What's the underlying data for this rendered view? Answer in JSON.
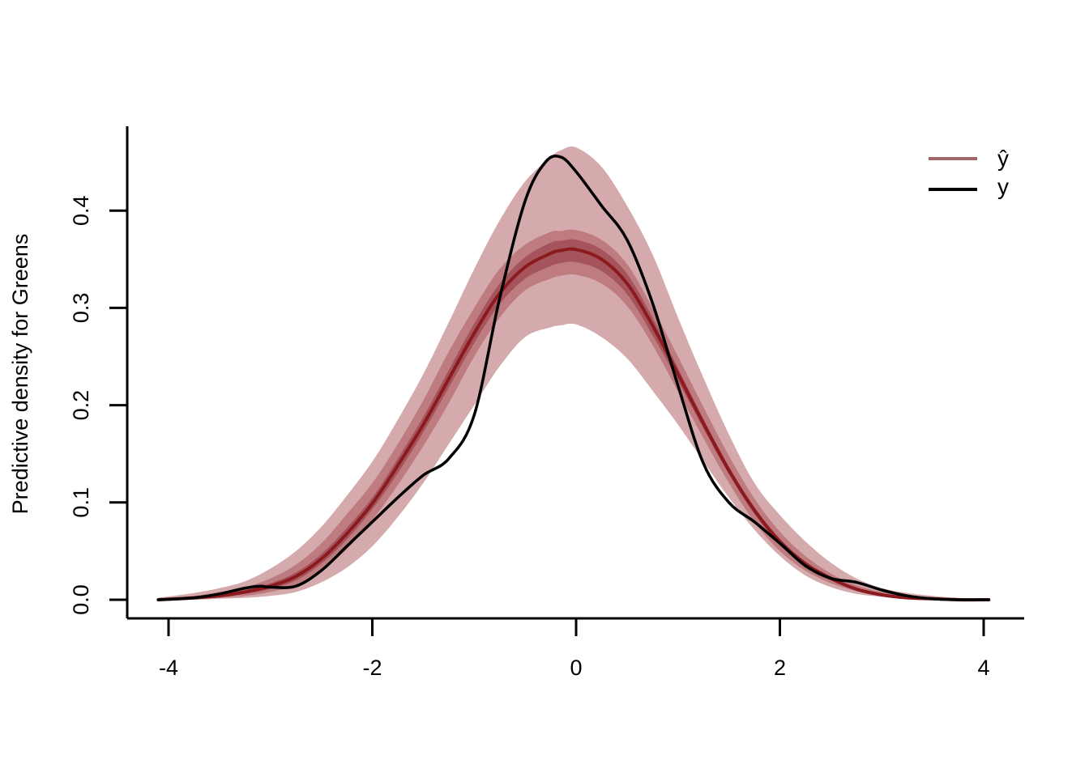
{
  "chart_data": {
    "type": "area",
    "title": "",
    "xlabel": "",
    "ylabel": "Predictive density for Greens",
    "xlim": [
      -4.2,
      4.2
    ],
    "ylim": [
      0,
      0.5
    ],
    "xticks": [
      -4,
      -2,
      0,
      2,
      4
    ],
    "xtick_labels": [
      "-4",
      "-2",
      "0",
      "2",
      "4"
    ],
    "yticks": [
      0.0,
      0.1,
      0.2,
      0.3,
      0.4
    ],
    "ytick_labels": [
      "0.0",
      "0.1",
      "0.2",
      "0.3",
      "0.4"
    ],
    "grid": false,
    "legend": {
      "position": "top-right",
      "entries": [
        {
          "label": "ŷ",
          "color": "#A0666C"
        },
        {
          "label": "y",
          "color": "#000000"
        }
      ]
    },
    "x": [
      -4.1,
      -3.75,
      -3.5,
      -3.25,
      -3.0,
      -2.75,
      -2.5,
      -2.25,
      -2.0,
      -1.75,
      -1.5,
      -1.25,
      -1.0,
      -0.75,
      -0.5,
      -0.25,
      -0.15,
      0.0,
      0.25,
      0.5,
      0.75,
      1.0,
      1.25,
      1.5,
      1.75,
      2.0,
      2.25,
      2.5,
      2.75,
      3.0,
      3.25,
      3.5,
      3.75,
      4.05
    ],
    "bands": [
      {
        "name": "outer",
        "color": "#D4AAAC",
        "upper": [
          0.002,
          0.007,
          0.012,
          0.019,
          0.032,
          0.05,
          0.075,
          0.107,
          0.142,
          0.185,
          0.232,
          0.285,
          0.34,
          0.39,
          0.43,
          0.455,
          0.462,
          0.465,
          0.445,
          0.405,
          0.355,
          0.29,
          0.228,
          0.17,
          0.12,
          0.087,
          0.06,
          0.038,
          0.022,
          0.012,
          0.007,
          0.004,
          0.002,
          0.001
        ],
        "lower": [
          0.0,
          0.0,
          0.001,
          0.002,
          0.004,
          0.008,
          0.018,
          0.033,
          0.055,
          0.085,
          0.12,
          0.16,
          0.2,
          0.24,
          0.27,
          0.28,
          0.282,
          0.283,
          0.27,
          0.248,
          0.215,
          0.18,
          0.142,
          0.105,
          0.072,
          0.045,
          0.025,
          0.013,
          0.006,
          0.003,
          0.001,
          0.0,
          0.0,
          0.0
        ]
      },
      {
        "name": "middle",
        "color": "#BE7B80",
        "upper": [
          0.001,
          0.004,
          0.008,
          0.013,
          0.022,
          0.036,
          0.058,
          0.088,
          0.12,
          0.16,
          0.205,
          0.255,
          0.3,
          0.34,
          0.365,
          0.378,
          0.379,
          0.38,
          0.37,
          0.345,
          0.3,
          0.25,
          0.198,
          0.148,
          0.104,
          0.07,
          0.045,
          0.027,
          0.015,
          0.008,
          0.004,
          0.002,
          0.001,
          0.0
        ],
        "lower": [
          0.0,
          0.001,
          0.002,
          0.004,
          0.008,
          0.015,
          0.03,
          0.052,
          0.082,
          0.118,
          0.158,
          0.202,
          0.25,
          0.29,
          0.318,
          0.33,
          0.333,
          0.334,
          0.325,
          0.302,
          0.262,
          0.214,
          0.166,
          0.12,
          0.08,
          0.05,
          0.03,
          0.017,
          0.009,
          0.004,
          0.002,
          0.001,
          0.0,
          0.0
        ]
      },
      {
        "name": "inner",
        "color": "#A5545B",
        "upper": [
          0.001,
          0.003,
          0.006,
          0.01,
          0.017,
          0.028,
          0.047,
          0.074,
          0.105,
          0.145,
          0.188,
          0.236,
          0.284,
          0.325,
          0.352,
          0.367,
          0.369,
          0.37,
          0.36,
          0.335,
          0.29,
          0.238,
          0.186,
          0.137,
          0.095,
          0.062,
          0.039,
          0.023,
          0.012,
          0.006,
          0.003,
          0.001,
          0.0,
          0.0
        ],
        "lower": [
          0.0,
          0.001,
          0.003,
          0.006,
          0.011,
          0.02,
          0.037,
          0.062,
          0.093,
          0.13,
          0.172,
          0.218,
          0.264,
          0.304,
          0.33,
          0.343,
          0.346,
          0.347,
          0.338,
          0.314,
          0.272,
          0.225,
          0.176,
          0.129,
          0.088,
          0.057,
          0.035,
          0.02,
          0.01,
          0.005,
          0.002,
          0.001,
          0.0,
          0.0
        ]
      }
    ],
    "series": [
      {
        "name": "ŷ",
        "color": "#8B1A1F",
        "values": [
          0.0,
          0.002,
          0.004,
          0.008,
          0.014,
          0.024,
          0.042,
          0.068,
          0.099,
          0.138,
          0.18,
          0.227,
          0.274,
          0.315,
          0.342,
          0.356,
          0.359,
          0.36,
          0.35,
          0.325,
          0.282,
          0.232,
          0.181,
          0.133,
          0.092,
          0.06,
          0.037,
          0.022,
          0.011,
          0.005,
          0.002,
          0.001,
          0.0,
          0.0
        ]
      },
      {
        "name": "y",
        "color": "#000000",
        "x": [
          -4.1,
          -3.75,
          -3.5,
          -3.25,
          -3.1,
          -3.0,
          -2.75,
          -2.5,
          -2.25,
          -2.0,
          -1.75,
          -1.5,
          -1.25,
          -1.0,
          -0.75,
          -0.5,
          -0.3,
          -0.15,
          0.0,
          0.25,
          0.5,
          0.75,
          1.0,
          1.25,
          1.5,
          1.75,
          2.0,
          2.25,
          2.5,
          2.75,
          3.0,
          3.25,
          3.5,
          3.75,
          4.05
        ],
        "values": [
          0.0,
          0.002,
          0.006,
          0.012,
          0.014,
          0.013,
          0.014,
          0.03,
          0.055,
          0.08,
          0.105,
          0.128,
          0.145,
          0.19,
          0.31,
          0.41,
          0.45,
          0.455,
          0.44,
          0.405,
          0.37,
          0.305,
          0.22,
          0.14,
          0.1,
          0.08,
          0.058,
          0.035,
          0.022,
          0.018,
          0.01,
          0.004,
          0.001,
          0.0,
          0.0
        ]
      }
    ]
  }
}
